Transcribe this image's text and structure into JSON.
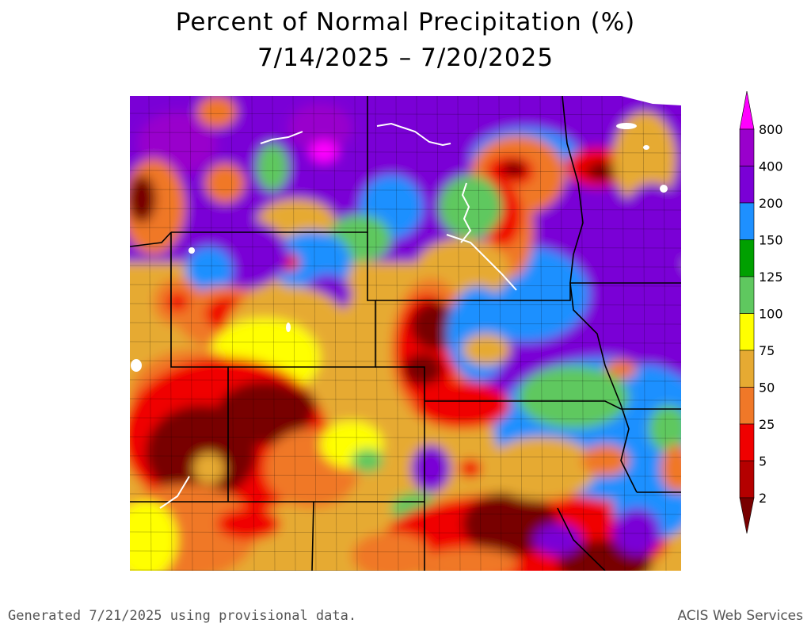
{
  "title": "Percent of Normal Precipitation (%)",
  "date_range": "7/14/2025 – 7/20/2025",
  "legend": {
    "labels": [
      "800",
      "400",
      "200",
      "150",
      "125",
      "100",
      "75",
      "50",
      "25",
      "5",
      "2"
    ],
    "colors": {
      "magenta": "#ff00ff",
      "violet_light": "#9900cc",
      "violet": "#7a00d6",
      "blue": "#1e90ff",
      "green_dark": "#00a000",
      "green": "#5fc85f",
      "yellow": "#ffff00",
      "gold": "#e6aa32",
      "orange": "#f07828",
      "red": "#f00000",
      "red_dark": "#b40000",
      "maroon": "#780000"
    }
  },
  "footer": {
    "generated": "Generated 7/21/2025 using provisional data.",
    "source": "ACIS Web Services"
  }
}
